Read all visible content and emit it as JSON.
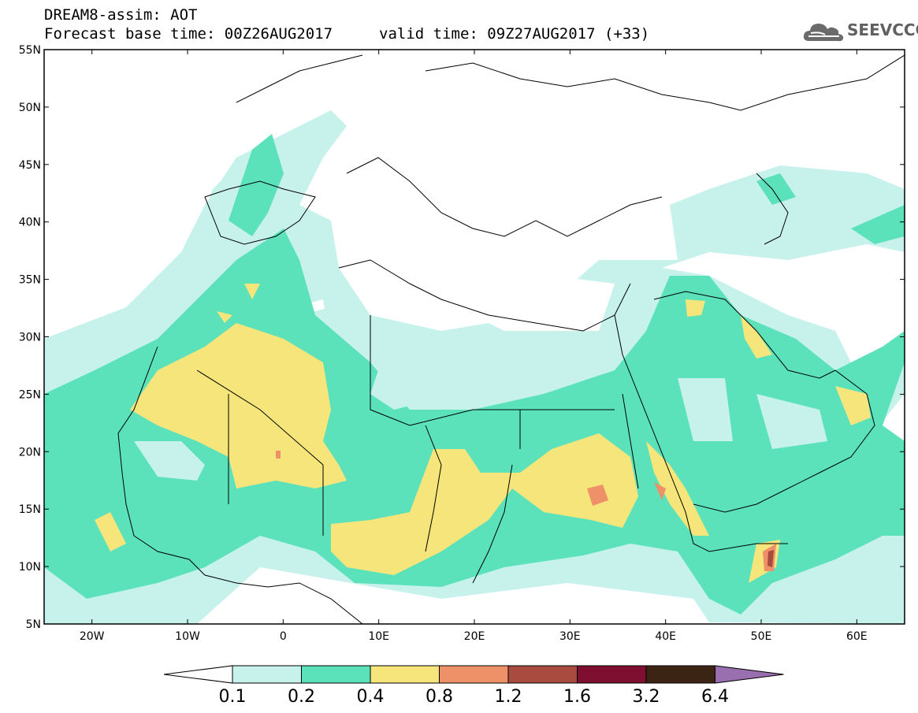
{
  "header": {
    "title": "DREAM8-assim: AOT",
    "base_time": "Forecast base time: 00Z26AUG2017",
    "valid_time": "valid time: 09Z27AUG2017 (+33)"
  },
  "logo": {
    "text": "SEEVCCC",
    "icon": "cloud-icon"
  },
  "map": {
    "lon_range": [
      -25,
      65
    ],
    "lat_range": [
      5,
      55
    ],
    "lat_ticks": [
      "55N",
      "50N",
      "45N",
      "40N",
      "35N",
      "30N",
      "25N",
      "20N",
      "15N",
      "10N",
      "5N"
    ],
    "lon_ticks": [
      "20W",
      "10W",
      "0",
      "10E",
      "20E",
      "30E",
      "40E",
      "50E",
      "60E"
    ]
  },
  "colorbar": {
    "levels": [
      "0.1",
      "0.2",
      "0.4",
      "0.8",
      "1.2",
      "1.6",
      "3.2",
      "6.4"
    ],
    "colors": [
      "#c7f2ec",
      "#5be2bb",
      "#f5e57b",
      "#ee9068",
      "#a94c3f",
      "#7e0f30",
      "#3c2414",
      "#9a6fb0"
    ],
    "under_color": "#ffffff"
  },
  "colors": {
    "c01": "#c7f2ec",
    "c02": "#5be2bb",
    "c04": "#f5e57b",
    "c08": "#ee9068",
    "c12": "#a94c3f",
    "c16": "#7e0f30"
  }
}
